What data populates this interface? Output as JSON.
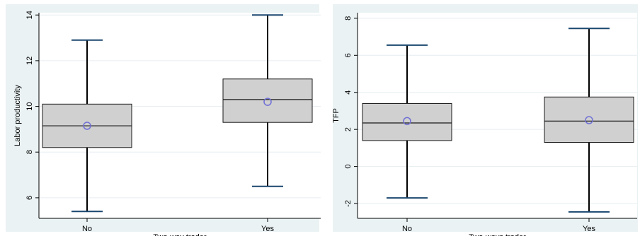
{
  "chart_data": [
    {
      "type": "boxplot",
      "title": "",
      "xlabel": "Two-way trader",
      "ylabel": "Labor productivity",
      "ylim": [
        5.1,
        14.1
      ],
      "yticks": [
        6,
        8,
        10,
        12,
        14
      ],
      "grid": true,
      "legend": "none",
      "categories": [
        "No",
        "Yes"
      ],
      "boxes": [
        {
          "category": "No",
          "whisker_low": 5.4,
          "q1": 8.2,
          "median": 9.15,
          "q3": 10.1,
          "whisker_high": 12.9,
          "mean": 9.15
        },
        {
          "category": "Yes",
          "whisker_low": 6.5,
          "q1": 9.3,
          "median": 10.3,
          "q3": 11.2,
          "whisker_high": 14.0,
          "mean": 10.2
        }
      ]
    },
    {
      "type": "boxplot",
      "title": "",
      "xlabel": "Two-ways trader",
      "ylabel": "TFP",
      "ylim": [
        -2.8,
        8.3
      ],
      "yticks": [
        -2,
        0,
        2,
        4,
        6,
        8
      ],
      "grid": true,
      "legend": "none",
      "categories": [
        "No",
        "Yes"
      ],
      "boxes": [
        {
          "category": "No",
          "whisker_low": -1.7,
          "q1": 1.4,
          "median": 2.35,
          "q3": 3.4,
          "whisker_high": 6.55,
          "mean": 2.45
        },
        {
          "category": "Yes",
          "whisker_low": -2.45,
          "q1": 1.3,
          "median": 2.45,
          "q3": 3.75,
          "whisker_high": 7.45,
          "mean": 2.5
        }
      ]
    }
  ],
  "colors": {
    "outer_background": "#eaf2f3",
    "plot_background": "#ffffff",
    "box_fill": "#d0d0d0",
    "box_stroke": "#1a1a1a",
    "whisker": "#000000",
    "cap": "#1a476f",
    "mean_marker": "#6f6fd6",
    "grid": "#e6eef0",
    "axis": "#000000"
  }
}
